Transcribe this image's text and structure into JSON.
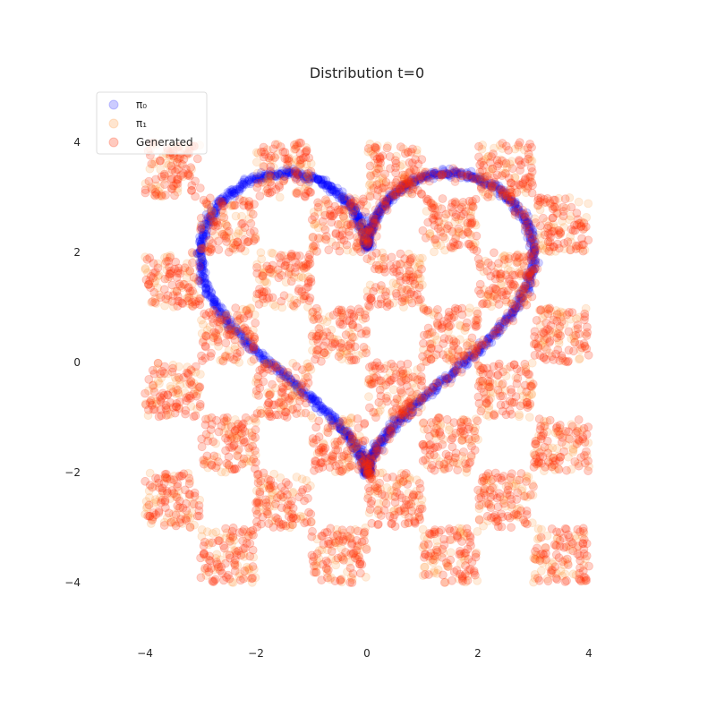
{
  "chart_data": {
    "type": "scatter",
    "title": "Distribution t=0",
    "xlabel": "",
    "ylabel": "",
    "xlim": [
      -4.0,
      4.0
    ],
    "ylim": [
      -4.0,
      4.0
    ],
    "xticks": [
      -4,
      -2,
      0,
      2,
      4
    ],
    "yticks": [
      -4,
      -2,
      0,
      2,
      4
    ],
    "xtick_labels": [
      "−4",
      "−2",
      "0",
      "2",
      "4"
    ],
    "ytick_labels": [
      "−4",
      "−2",
      "0",
      "2",
      "4"
    ],
    "grid": false,
    "legend_position": "top-left",
    "series": [
      {
        "name": "π₀",
        "color": "#0000ff",
        "alpha": 0.18,
        "shape": "heart",
        "heart_center": [
          0.0,
          1.2
        ],
        "heart_param_range_t": [
          0,
          6.2832
        ],
        "heart_scale": 0.1875,
        "heart_formula": "x=16 sin^3 t, y=13 cos t - 5 cos 2t - 2 cos 3t - cos 4t"
      },
      {
        "name": "π₁",
        "color": "#ff7f0e",
        "alpha": 0.15,
        "shape": "checkerboard",
        "cell_size": 1.0,
        "filled_squares": [
          [
            -4,
            3
          ],
          [
            -2,
            3
          ],
          [
            0,
            3
          ],
          [
            2,
            3
          ],
          [
            -3,
            2
          ],
          [
            -1,
            2
          ],
          [
            1,
            2
          ],
          [
            3,
            2
          ],
          [
            -4,
            1
          ],
          [
            -2,
            1
          ],
          [
            0,
            1
          ],
          [
            2,
            1
          ],
          [
            -3,
            0
          ],
          [
            -1,
            0
          ],
          [
            1,
            0
          ],
          [
            3,
            0
          ],
          [
            -4,
            -1
          ],
          [
            -2,
            -1
          ],
          [
            0,
            -1
          ],
          [
            2,
            -1
          ],
          [
            -3,
            -2
          ],
          [
            -1,
            -2
          ],
          [
            1,
            -2
          ],
          [
            3,
            -2
          ],
          [
            -4,
            -3
          ],
          [
            -2,
            -3
          ],
          [
            0,
            -3
          ],
          [
            2,
            -3
          ],
          [
            -3,
            -4
          ],
          [
            -1,
            -4
          ],
          [
            1,
            -4
          ],
          [
            3,
            -4
          ]
        ]
      },
      {
        "name": "Generated",
        "color": "#ff2a00",
        "alpha": 0.22,
        "shape": "checkerboard",
        "same_as": "π₁"
      }
    ]
  }
}
